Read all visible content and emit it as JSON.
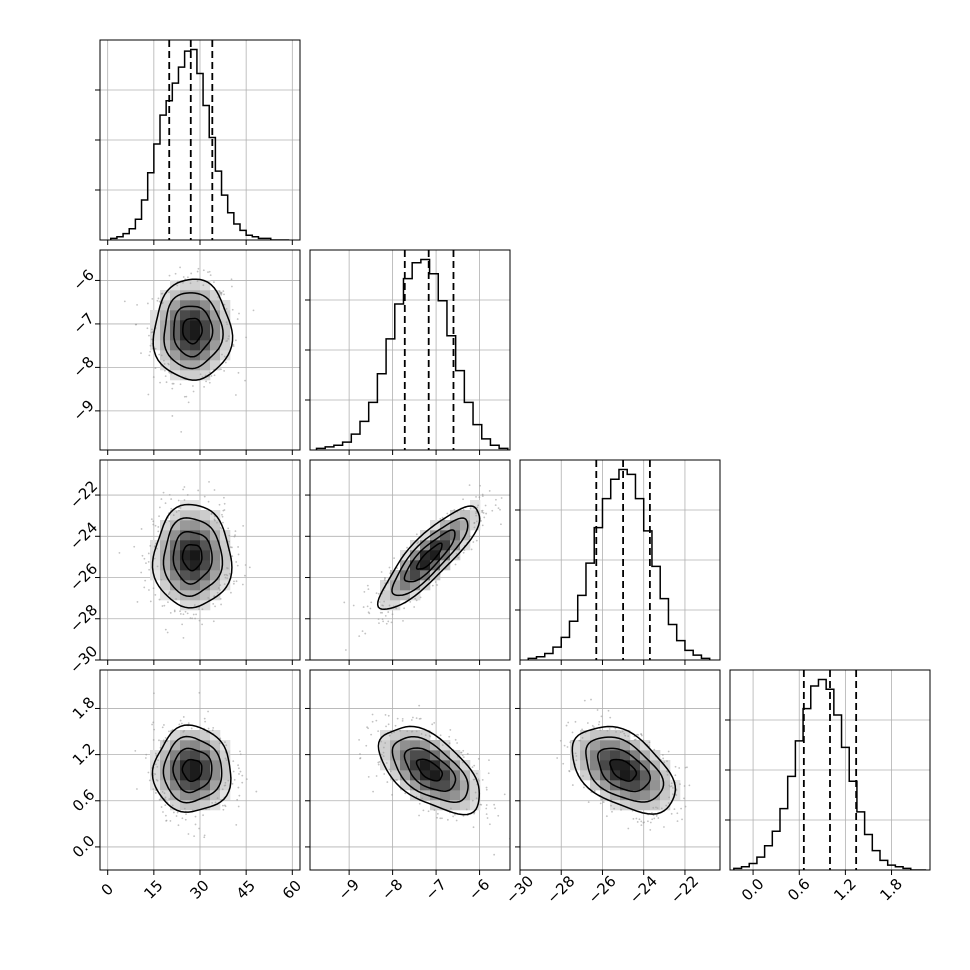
{
  "chart_data": {
    "type": "corner",
    "title": "",
    "grid": true,
    "params": [
      {
        "range": [
          -2.5,
          62.5
        ],
        "ticks": [
          0,
          15,
          30,
          45,
          60
        ],
        "tick_labels": [
          "0",
          "15",
          "30",
          "45",
          "60"
        ],
        "mean": 27.5,
        "sd": 6.3,
        "quantiles": [
          20.0,
          27.0,
          34.0
        ],
        "hist": {
          "bins": [
            2,
            4,
            6,
            8,
            10,
            12,
            14,
            16,
            18,
            20,
            22,
            24,
            26,
            28,
            30,
            32,
            34,
            36,
            38,
            40,
            42,
            44,
            46,
            48,
            50,
            52,
            54,
            56,
            58
          ],
          "counts": [
            1,
            2,
            4,
            7,
            13,
            25,
            42,
            60,
            78,
            87,
            98,
            108,
            118,
            119,
            104,
            84,
            64,
            43,
            28,
            17,
            10,
            6,
            3,
            2,
            1,
            1,
            0,
            0,
            0
          ]
        }
      },
      {
        "range": [
          -9.9,
          -5.3
        ],
        "ticks": [
          -9,
          -8,
          -7,
          -6
        ],
        "tick_labels": [
          "−9",
          "−8",
          "−7",
          "−6"
        ],
        "mean": -7.15,
        "sd": 0.58,
        "quantiles": [
          -7.72,
          -7.17,
          -6.6
        ],
        "hist": {
          "bins": [
            -9.65,
            -9.45,
            -9.25,
            -9.05,
            -8.85,
            -8.65,
            -8.45,
            -8.25,
            -8.05,
            -7.85,
            -7.65,
            -7.45,
            -7.25,
            -7.05,
            -6.85,
            -6.65,
            -6.45,
            -6.25,
            -6.05,
            -5.85,
            -5.65,
            -5.45
          ],
          "counts": [
            1,
            2,
            3,
            5,
            10,
            18,
            30,
            48,
            70,
            92,
            108,
            118,
            120,
            111,
            94,
            72,
            50,
            30,
            16,
            7,
            3,
            1
          ]
        }
      },
      {
        "range": [
          -30,
          -20.3
        ],
        "ticks": [
          -30,
          -28,
          -26,
          -24,
          -22
        ],
        "tick_labels": [
          "−30",
          "−28",
          "−26",
          "−24",
          "−22"
        ],
        "mean": -25.0,
        "sd": 1.25,
        "quantiles": [
          -26.3,
          -25.0,
          -23.7
        ],
        "hist": {
          "bins": [
            -29.4,
            -29.0,
            -28.6,
            -28.2,
            -27.8,
            -27.4,
            -27.0,
            -26.6,
            -26.2,
            -25.8,
            -25.4,
            -25.0,
            -24.6,
            -24.2,
            -23.8,
            -23.4,
            -23.0,
            -22.6,
            -22.2,
            -21.8,
            -21.4,
            -21.0
          ],
          "counts": [
            1,
            2,
            4,
            8,
            14,
            24,
            40,
            60,
            82,
            100,
            112,
            118,
            115,
            100,
            80,
            58,
            38,
            22,
            12,
            6,
            3,
            1
          ]
        }
      },
      {
        "range": [
          -0.3,
          2.3
        ],
        "ticks": [
          0.0,
          0.6,
          1.2,
          1.8
        ],
        "tick_labels": [
          "0.0",
          "0.6",
          "1.2",
          "1.8"
        ],
        "mean": 1.0,
        "sd": 0.28,
        "quantiles": [
          0.66,
          1.0,
          1.34
        ],
        "hist": {
          "bins": [
            -0.2,
            -0.1,
            0.0,
            0.1,
            0.2,
            0.3,
            0.4,
            0.5,
            0.6,
            0.7,
            0.8,
            0.9,
            1.0,
            1.1,
            1.2,
            1.3,
            1.4,
            1.5,
            1.6,
            1.7,
            1.8,
            1.9,
            2.0,
            2.1,
            2.2
          ],
          "counts": [
            1,
            2,
            4,
            8,
            15,
            24,
            38,
            58,
            80,
            100,
            114,
            118,
            112,
            96,
            76,
            55,
            36,
            22,
            12,
            6,
            3,
            2,
            1,
            0,
            0
          ]
        }
      }
    ],
    "correlations": {
      "1-0": 0.0,
      "2-0": 0.0,
      "2-1": 0.85,
      "3-0": 0.0,
      "3-1": -0.55,
      "3-2": -0.45
    }
  }
}
